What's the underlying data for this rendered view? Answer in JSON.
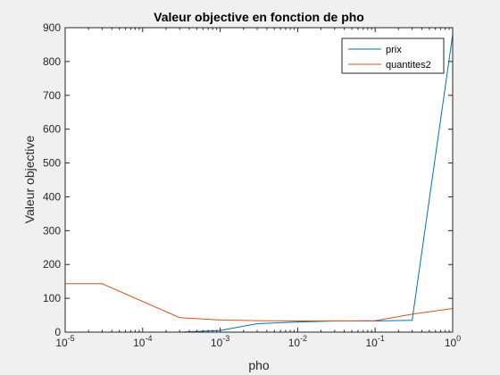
{
  "chart_data": {
    "type": "line",
    "title": "Valeur objective en fonction de pho",
    "xlabel": "pho",
    "ylabel": "Valeur objective",
    "xscale": "log",
    "xlim": [
      1e-05,
      1
    ],
    "ylim": [
      0,
      900
    ],
    "x_ticks": [
      1e-05,
      0.0001,
      0.001,
      0.01,
      0.1,
      1
    ],
    "x_tick_labels": [
      {
        "base": "10",
        "exp": "-5"
      },
      {
        "base": "10",
        "exp": "-4"
      },
      {
        "base": "10",
        "exp": "-3"
      },
      {
        "base": "10",
        "exp": "-2"
      },
      {
        "base": "10",
        "exp": "-1"
      },
      {
        "base": "10",
        "exp": "0"
      }
    ],
    "y_ticks": [
      0,
      100,
      200,
      300,
      400,
      500,
      600,
      700,
      800,
      900
    ],
    "y_tick_labels": [
      "0",
      "100",
      "200",
      "300",
      "400",
      "500",
      "600",
      "700",
      "800",
      "900"
    ],
    "grid": false,
    "legend_position": "top-right",
    "x": [
      1e-05,
      3e-05,
      0.0003,
      0.001,
      0.003,
      0.01,
      0.03,
      0.1,
      0.3,
      1
    ],
    "series": [
      {
        "name": "prix",
        "color": "#0072BD",
        "values": [
          0,
          0,
          0,
          5,
          25,
          30,
          33,
          33,
          35,
          880
        ]
      },
      {
        "name": "quantites2",
        "color": "#D95319",
        "values": [
          143,
          143,
          43,
          36,
          34,
          33,
          33,
          34,
          53,
          70
        ]
      }
    ]
  }
}
